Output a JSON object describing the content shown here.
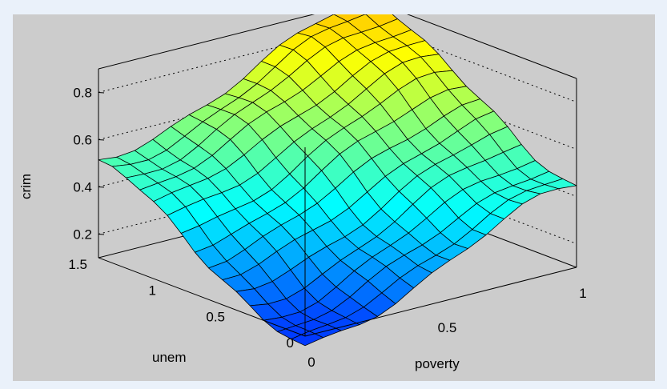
{
  "chart_data": {
    "type": "surface",
    "xlabel": "poverty",
    "ylabel": "unem",
    "zlabel": "crim",
    "xlim": [
      0,
      1
    ],
    "ylim": [
      0,
      1.5
    ],
    "zlim": [
      0.1,
      0.9
    ],
    "x_ticks": [
      "0",
      "0.5",
      "1"
    ],
    "y_ticks": [
      "0",
      "0.5",
      "1",
      "1.5"
    ],
    "z_ticks": [
      "0.2",
      "0.4",
      "0.6",
      "0.8"
    ],
    "grid": true,
    "colormap": "jet",
    "corner_values": {
      "poverty0_unem0": 0.05,
      "poverty1_unem0": 0.45,
      "poverty0_unem1.5": 0.5,
      "poverty1_unem1.5": 0.9
    },
    "grid_size": 15
  }
}
